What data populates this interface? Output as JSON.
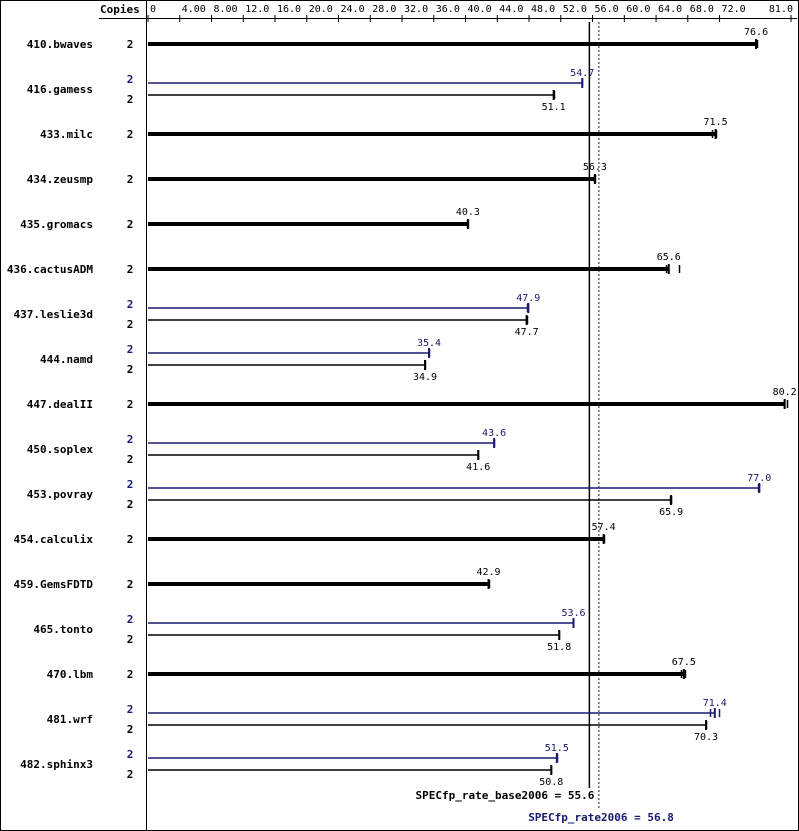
{
  "chart_data": {
    "type": "bar",
    "orientation": "horizontal",
    "axis_label": "Copies",
    "ticks": [
      "0",
      "4.00",
      "8.00",
      "12.0",
      "16.0",
      "20.0",
      "24.0",
      "28.0",
      "32.0",
      "36.0",
      "40.0",
      "44.0",
      "48.0",
      "52.0",
      "56.0",
      "60.0",
      "64.0",
      "68.0",
      "72.0",
      "81.0"
    ],
    "xlim": [
      0,
      81.0
    ],
    "colors": {
      "base": "#000000",
      "peak": "#191970"
    },
    "benchmarks": [
      {
        "name": "410.bwaves",
        "single": {
          "copies": "2",
          "value": 76.6,
          "label": "76.6",
          "min": 76.6,
          "max": 76.7
        }
      },
      {
        "name": "416.gamess",
        "peak": {
          "copies": "2",
          "value": 54.7,
          "label": "54.7",
          "min": 54.7,
          "max": 54.7
        },
        "base": {
          "copies": "2",
          "value": 51.1,
          "label": "51.1",
          "min": 51.1,
          "max": 51.1
        }
      },
      {
        "name": "433.milc",
        "single": {
          "copies": "2",
          "value": 71.5,
          "label": "71.5",
          "min": 71.0,
          "max": 71.5
        }
      },
      {
        "name": "434.zeusmp",
        "single": {
          "copies": "2",
          "value": 56.3,
          "label": "56.3",
          "min": 56.2,
          "max": 56.3
        }
      },
      {
        "name": "435.gromacs",
        "single": {
          "copies": "2",
          "value": 40.3,
          "label": "40.3",
          "min": 40.2,
          "max": 40.3
        }
      },
      {
        "name": "436.cactusADM",
        "single": {
          "copies": "2",
          "value": 65.6,
          "label": "65.6",
          "min": 65.2,
          "max": 66.9
        }
      },
      {
        "name": "437.leslie3d",
        "peak": {
          "copies": "2",
          "value": 47.9,
          "label": "47.9",
          "min": 47.8,
          "max": 47.9
        },
        "base": {
          "copies": "2",
          "value": 47.7,
          "label": "47.7",
          "min": 47.6,
          "max": 47.7
        }
      },
      {
        "name": "444.namd",
        "peak": {
          "copies": "2",
          "value": 35.4,
          "label": "35.4",
          "min": 35.4,
          "max": 35.4
        },
        "base": {
          "copies": "2",
          "value": 34.9,
          "label": "34.9",
          "min": 34.9,
          "max": 34.9
        }
      },
      {
        "name": "447.dealII",
        "single": {
          "copies": "2",
          "value": 80.2,
          "label": "80.2",
          "min": 80.1,
          "max": 80.5
        }
      },
      {
        "name": "450.soplex",
        "peak": {
          "copies": "2",
          "value": 43.6,
          "label": "43.6",
          "min": 43.6,
          "max": 43.6
        },
        "base": {
          "copies": "2",
          "value": 41.6,
          "label": "41.6",
          "min": 41.6,
          "max": 41.6
        }
      },
      {
        "name": "453.povray",
        "peak": {
          "copies": "2",
          "value": 77.0,
          "label": "77.0",
          "min": 76.8,
          "max": 77.0
        },
        "base": {
          "copies": "2",
          "value": 65.9,
          "label": "65.9",
          "min": 65.8,
          "max": 65.9
        }
      },
      {
        "name": "454.calculix",
        "single": {
          "copies": "2",
          "value": 57.4,
          "label": "57.4",
          "min": 57.3,
          "max": 57.4
        }
      },
      {
        "name": "459.GemsFDTD",
        "single": {
          "copies": "2",
          "value": 42.9,
          "label": "42.9",
          "min": 42.8,
          "max": 42.9
        }
      },
      {
        "name": "465.tonto",
        "peak": {
          "copies": "2",
          "value": 53.6,
          "label": "53.6",
          "min": 53.6,
          "max": 53.6
        },
        "base": {
          "copies": "2",
          "value": 51.8,
          "label": "51.8",
          "min": 51.8,
          "max": 51.8
        }
      },
      {
        "name": "470.lbm",
        "single": {
          "copies": "2",
          "value": 67.5,
          "label": "67.5",
          "min": 67.2,
          "max": 67.6
        }
      },
      {
        "name": "481.wrf",
        "peak": {
          "copies": "2",
          "value": 71.4,
          "label": "71.4",
          "min": 70.8,
          "max": 71.9
        },
        "base": {
          "copies": "2",
          "value": 70.3,
          "label": "70.3",
          "min": 70.3,
          "max": 70.3
        }
      },
      {
        "name": "482.sphinx3",
        "peak": {
          "copies": "2",
          "value": 51.5,
          "label": "51.5",
          "min": 51.5,
          "max": 51.5
        },
        "base": {
          "copies": "2",
          "value": 50.8,
          "label": "50.8",
          "min": 50.8,
          "max": 50.8
        }
      }
    ],
    "reference_lines": [
      {
        "kind": "base",
        "value": 55.6,
        "label": "SPECfp_rate_base2006 = 55.6"
      },
      {
        "kind": "peak",
        "value": 56.8,
        "label": "SPECfp_rate2006 = 56.8"
      }
    ]
  }
}
